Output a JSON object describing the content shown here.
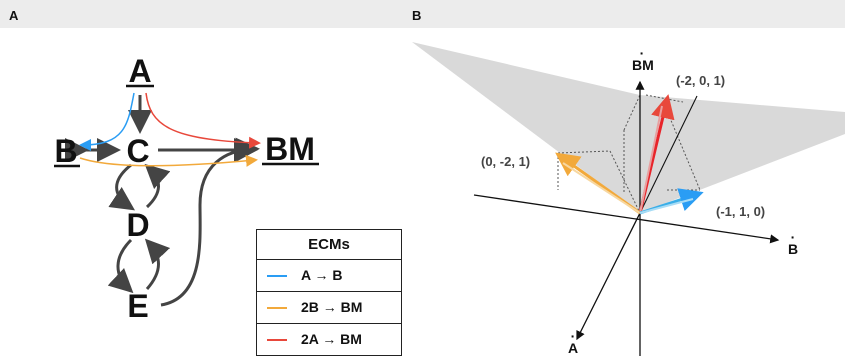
{
  "panels": {
    "a": {
      "letter": "A"
    },
    "b": {
      "letter": "B"
    }
  },
  "network": {
    "nodes": {
      "A": "A",
      "B": "B",
      "C": "C",
      "BM": "BM",
      "D": "D",
      "E": "E"
    }
  },
  "legend": {
    "title": "ECMs",
    "rows": [
      {
        "text": "A  → B",
        "color": "#2a9df4"
      },
      {
        "text": "2B → BM",
        "color": "#f2a93b"
      },
      {
        "text": "2A → BM",
        "color": "#e8483b"
      }
    ]
  },
  "space": {
    "axes": {
      "bm": "BM",
      "b": "B",
      "a": "A"
    },
    "vectors": [
      {
        "label": "(-2, 0, 1)",
        "color": "#e8242a"
      },
      {
        "label": "(0, -2, 1)",
        "color": "#f2a93b"
      },
      {
        "label": "(-1, 1, 0)",
        "color": "#3aaee8"
      }
    ],
    "plane_color": "#d9d9d9"
  }
}
